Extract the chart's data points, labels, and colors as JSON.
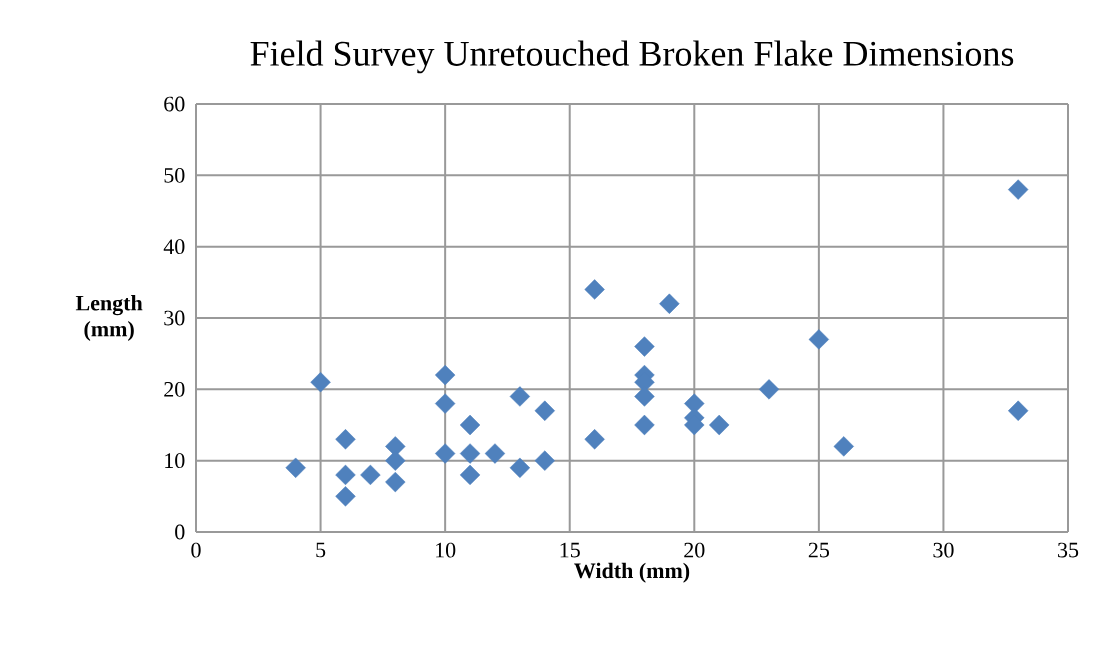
{
  "chart_data": {
    "type": "scatter",
    "title": "Field Survey Unretouched Broken Flake Dimensions",
    "xlabel": "Width (mm)",
    "ylabel": "Length (mm)",
    "x": [
      4,
      5,
      6,
      6,
      6,
      7,
      8,
      8,
      8,
      10,
      10,
      10,
      11,
      11,
      11,
      12,
      13,
      13,
      14,
      14,
      16,
      16,
      18,
      18,
      18,
      18,
      18,
      19,
      20,
      20,
      20,
      21,
      23,
      25,
      26,
      33,
      33
    ],
    "values": [
      9,
      21,
      13,
      8,
      5,
      8,
      12,
      10,
      7,
      22,
      18,
      11,
      15,
      11,
      8,
      11,
      19,
      9,
      17,
      10,
      34,
      13,
      26,
      22,
      21,
      19,
      15,
      32,
      18,
      16,
      15,
      15,
      20,
      27,
      12,
      48,
      17
    ],
    "color": "#4f81bd",
    "marker": "diamond",
    "grid": true,
    "xlim": [
      0,
      35
    ],
    "ylim": [
      0,
      60
    ],
    "xticks": [
      0,
      5,
      10,
      15,
      20,
      25,
      30,
      35
    ],
    "yticks": [
      0,
      10,
      20,
      30,
      40,
      50,
      60
    ]
  }
}
